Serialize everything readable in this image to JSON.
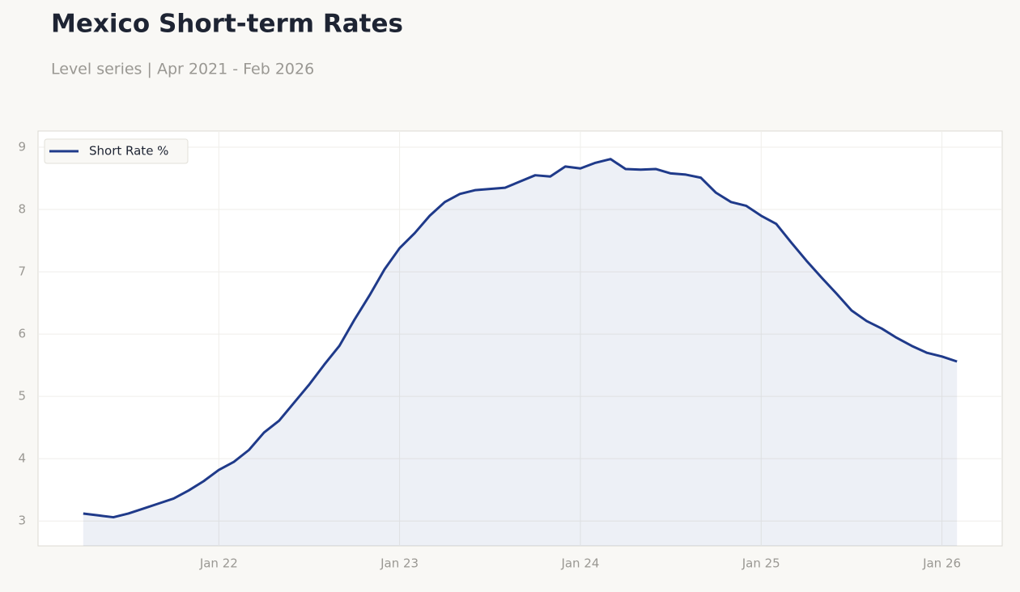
{
  "chart_data": {
    "type": "line",
    "title": "Mexico Short-term Rates",
    "subtitle": "Level series | Apr 2021 - Feb 2026",
    "x": [
      "2021-04",
      "2021-05",
      "2021-06",
      "2021-07",
      "2021-08",
      "2021-09",
      "2021-10",
      "2021-11",
      "2021-12",
      "2022-01",
      "2022-02",
      "2022-03",
      "2022-04",
      "2022-05",
      "2022-06",
      "2022-07",
      "2022-08",
      "2022-09",
      "2022-10",
      "2022-11",
      "2022-12",
      "2023-01",
      "2023-02",
      "2023-03",
      "2023-04",
      "2023-05",
      "2023-06",
      "2023-07",
      "2023-08",
      "2023-09",
      "2023-10",
      "2023-11",
      "2023-12",
      "2024-01",
      "2024-02",
      "2024-03",
      "2024-04",
      "2024-05",
      "2024-06",
      "2024-07",
      "2024-08",
      "2024-09",
      "2024-10",
      "2024-11",
      "2024-12",
      "2025-01",
      "2025-02",
      "2025-03",
      "2025-04",
      "2025-05",
      "2025-06",
      "2025-07",
      "2025-08",
      "2025-09",
      "2025-10",
      "2025-11",
      "2025-12",
      "2026-01",
      "2026-02"
    ],
    "series": [
      {
        "name": "Short Rate %",
        "color": "#1f3a8a",
        "values": [
          3.12,
          3.09,
          3.06,
          3.12,
          3.2,
          3.28,
          3.36,
          3.49,
          3.64,
          3.82,
          3.95,
          4.14,
          4.42,
          4.61,
          4.9,
          5.19,
          5.51,
          5.81,
          6.23,
          6.62,
          7.04,
          7.38,
          7.62,
          7.9,
          8.12,
          8.25,
          8.31,
          8.33,
          8.35,
          8.45,
          8.55,
          8.53,
          8.69,
          8.66,
          8.75,
          8.81,
          8.65,
          8.64,
          8.65,
          8.58,
          8.56,
          8.51,
          8.27,
          8.12,
          8.06,
          7.9,
          7.77,
          7.47,
          7.18,
          6.91,
          6.65,
          6.38,
          6.21,
          6.09,
          5.94,
          5.81,
          5.7,
          5.64,
          5.56
        ]
      }
    ],
    "xlim": [
      "2021-01",
      "2026-05"
    ],
    "xticks": [
      {
        "value": "2022-01",
        "label": "Jan 22"
      },
      {
        "value": "2023-01",
        "label": "Jan 23"
      },
      {
        "value": "2024-01",
        "label": "Jan 24"
      },
      {
        "value": "2025-01",
        "label": "Jan 25"
      },
      {
        "value": "2026-01",
        "label": "Jan 26"
      }
    ],
    "ylim": [
      2.6,
      9.26
    ],
    "yticks": [
      3,
      4,
      5,
      6,
      7,
      8,
      9
    ],
    "grid": true,
    "legend": "upper left",
    "fill": true
  }
}
